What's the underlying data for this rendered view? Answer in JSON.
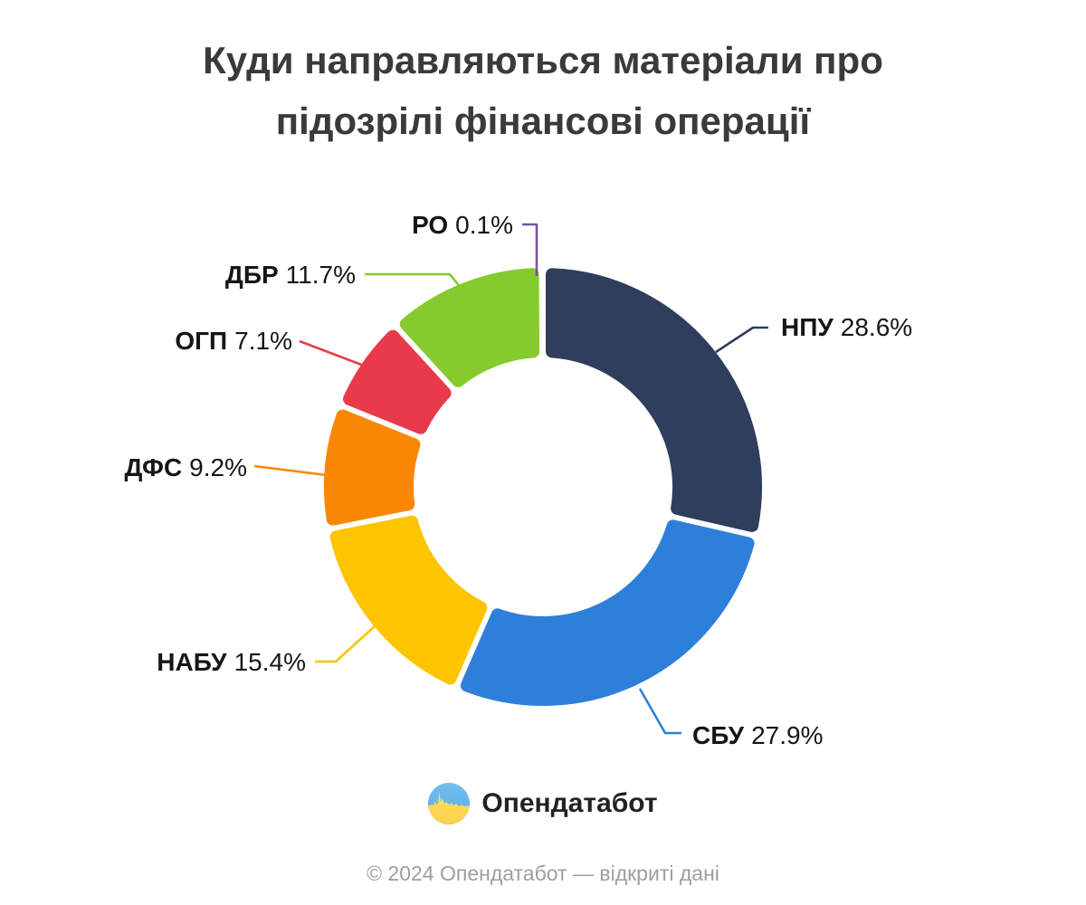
{
  "title": {
    "lines": [
      "Куди направляються матеріали про",
      "підозрілі фінансові операції"
    ]
  },
  "chart_data": {
    "type": "pie",
    "donut": true,
    "title": "Куди направляються матеріали про підозрілі фінансові операції",
    "unit": "%",
    "start_angle_deg": 0,
    "direction": "clockwise",
    "legend_position": "outside-callouts",
    "slices": [
      {
        "id": "npu",
        "label": "НПУ",
        "value": 28.6,
        "pct_label": "28.6%",
        "color": "#2e3e5c"
      },
      {
        "id": "sbu",
        "label": "СБУ",
        "value": 27.9,
        "pct_label": "27.9%",
        "color": "#2e7fda"
      },
      {
        "id": "nabu",
        "label": "НАБУ",
        "value": 15.4,
        "pct_label": "15.4%",
        "color": "#fec400"
      },
      {
        "id": "dfs",
        "label": "ДФС",
        "value": 9.2,
        "pct_label": "9.2%",
        "color": "#f98705"
      },
      {
        "id": "ogp",
        "label": "ОГП",
        "value": 7.1,
        "pct_label": "7.1%",
        "color": "#e83a4a"
      },
      {
        "id": "dbr",
        "label": "ДБР",
        "value": 11.7,
        "pct_label": "11.7%",
        "color": "#85cb2d"
      },
      {
        "id": "ro",
        "label": "РО",
        "value": 0.1,
        "pct_label": "0.1%",
        "color": "#7b52a3"
      }
    ]
  },
  "logo": {
    "text": "Опендатабот",
    "flag_blue": "#58ace6",
    "flag_blue_light": "#74bdee",
    "flag_yellow": "#fdd04a",
    "flag_yellow_light": "#ffdf63"
  },
  "footer": {
    "text": "© 2024 Опендатабот — відкриті дані"
  }
}
